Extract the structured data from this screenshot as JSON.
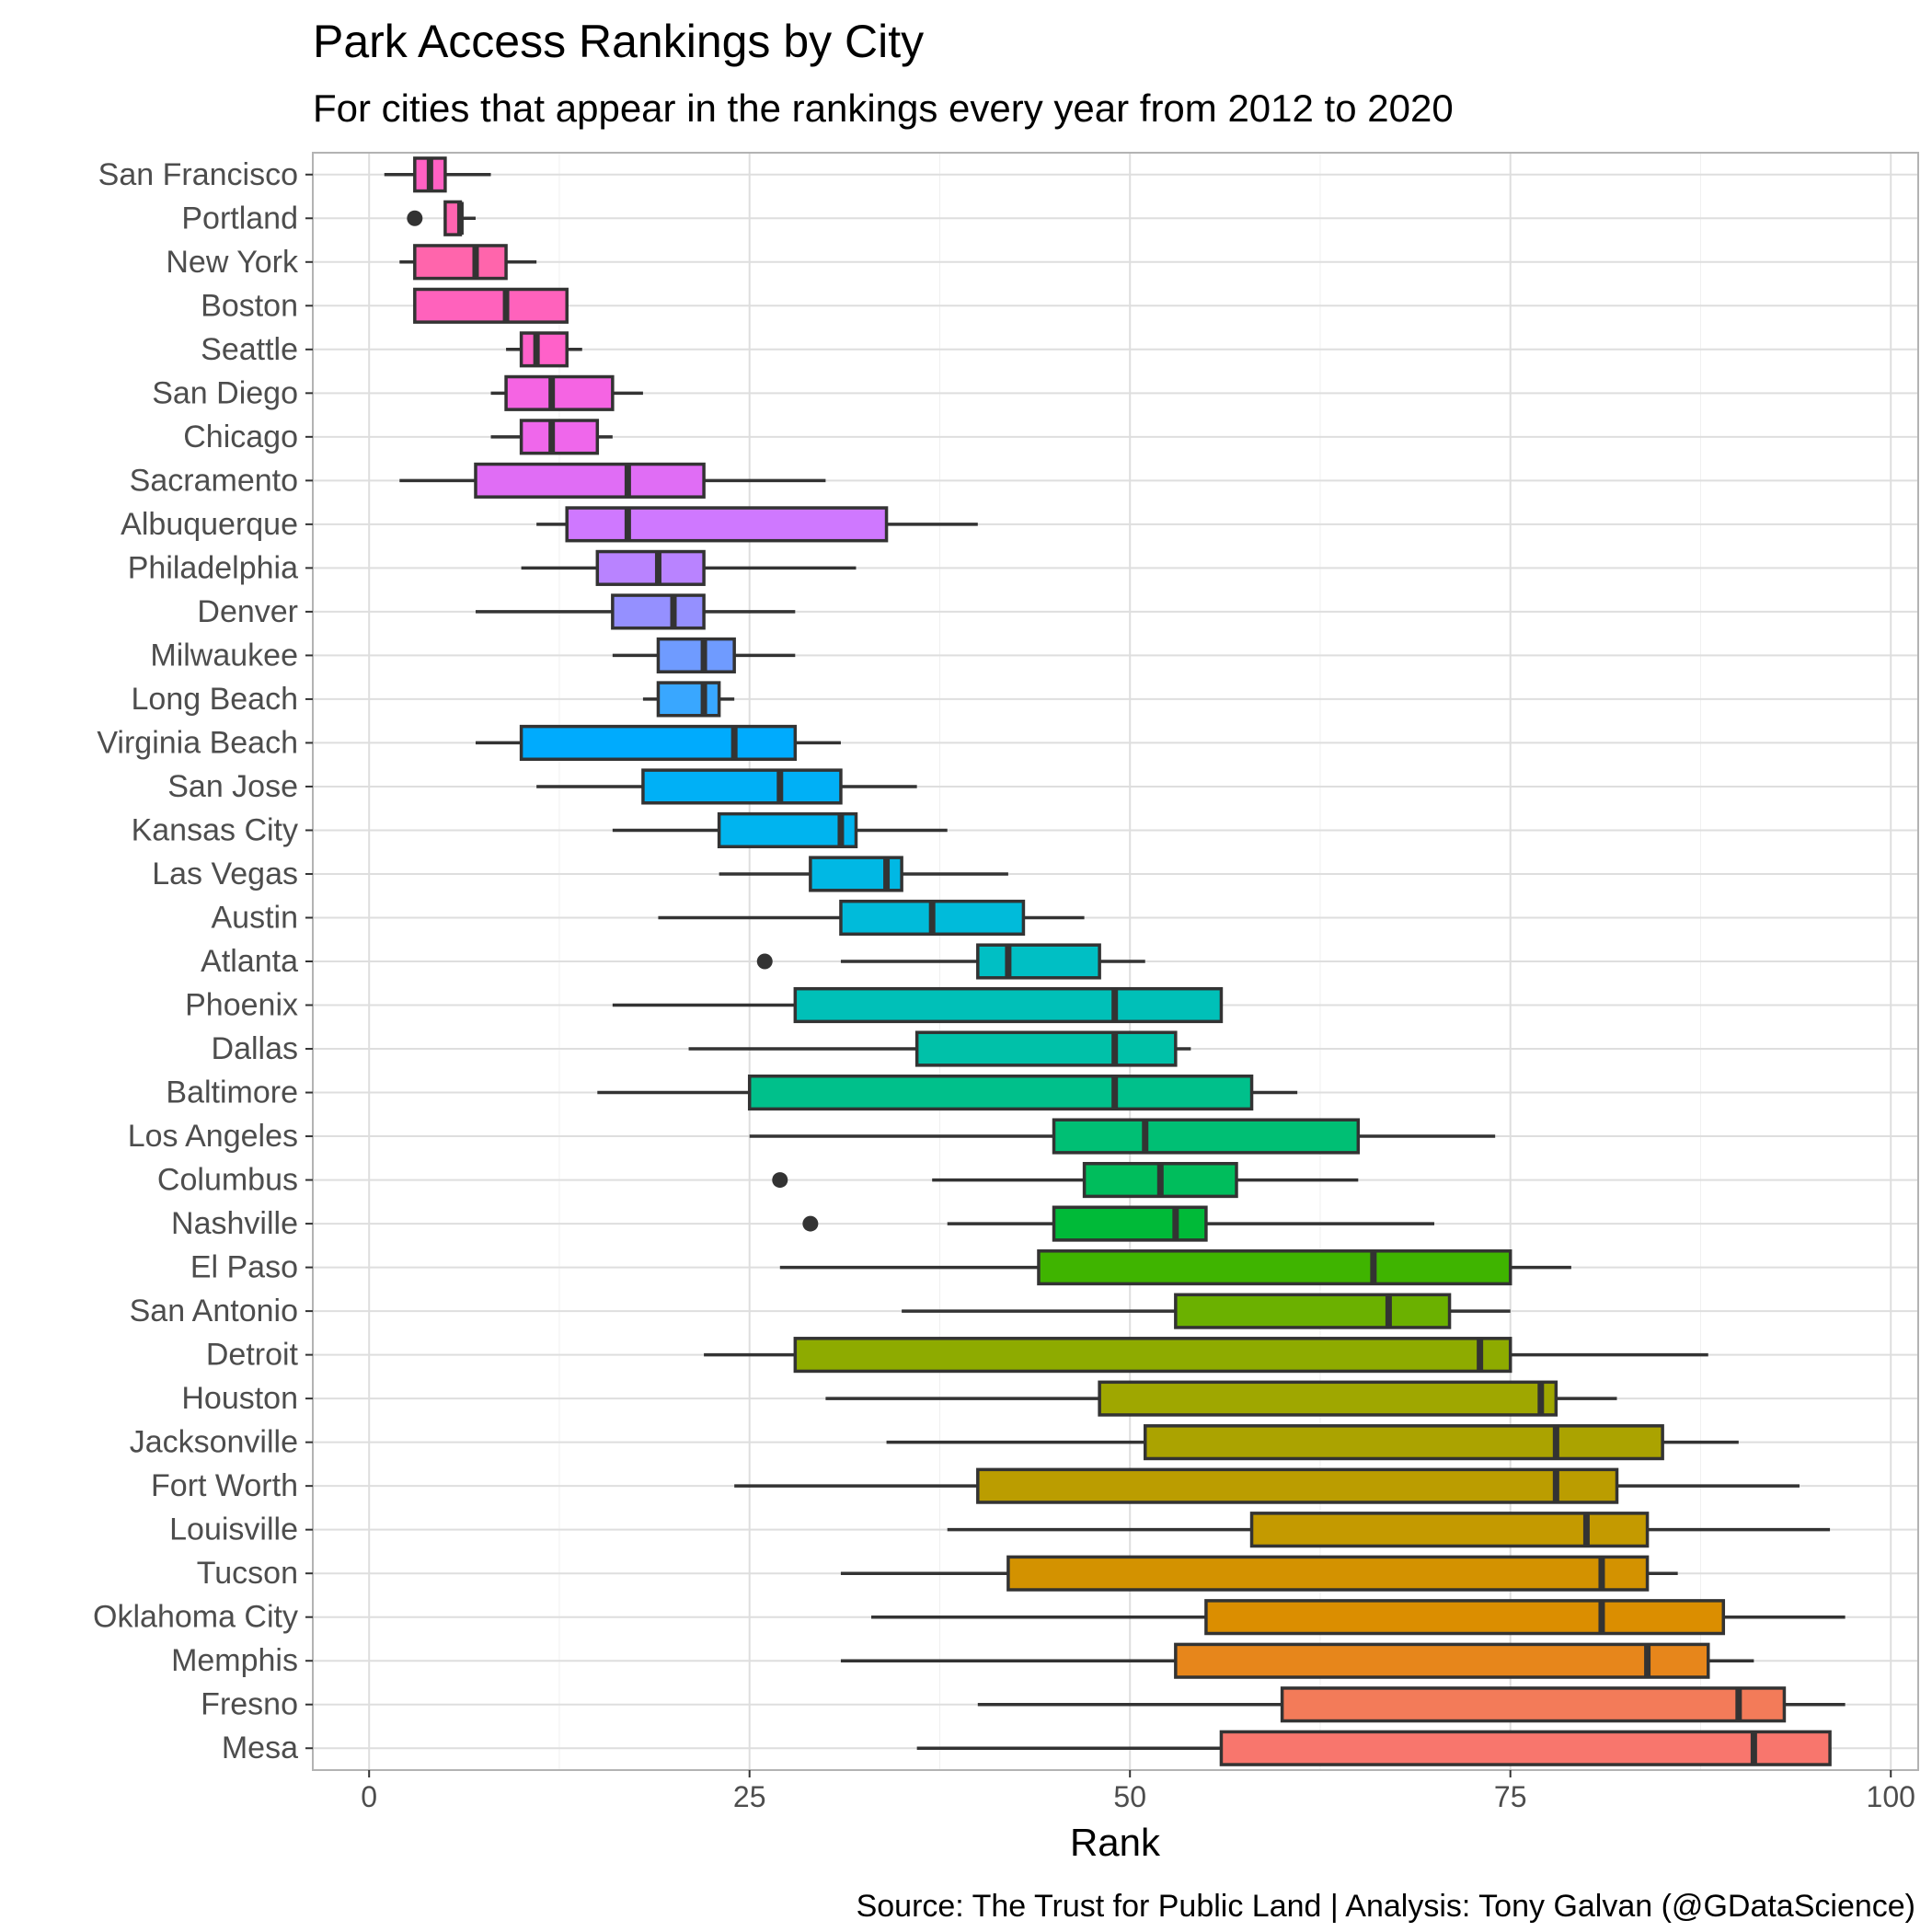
{
  "chart_data": {
    "type": "boxplot",
    "orientation": "horizontal",
    "title": "Park Access Rankings by City",
    "subtitle": "For cities that appear in the rankings every year from 2012 to 2020",
    "xlabel": "Rank",
    "ylabel": "",
    "caption": "Source: The Trust for Public Land  | Analysis: Tony Galvan (@GDataScience)",
    "xlim": [
      -3.7,
      101.8
    ],
    "xticks": [
      0,
      25,
      50,
      75,
      100
    ],
    "grid": true,
    "legend": "none",
    "categories": [
      "San Francisco",
      "Portland",
      "New York",
      "Boston",
      "Seattle",
      "San Diego",
      "Chicago",
      "Sacramento",
      "Albuquerque",
      "Philadelphia",
      "Denver",
      "Milwaukee",
      "Long Beach",
      "Virginia Beach",
      "San Jose",
      "Kansas City",
      "Las Vegas",
      "Austin",
      "Atlanta",
      "Phoenix",
      "Dallas",
      "Baltimore",
      "Los Angeles",
      "Columbus",
      "Nashville",
      "El Paso",
      "San Antonio",
      "Detroit",
      "Houston",
      "Jacksonville",
      "Fort Worth",
      "Louisville",
      "Tucson",
      "Oklahoma City",
      "Memphis",
      "Fresno",
      "Mesa"
    ],
    "boxes": [
      {
        "city": "San Francisco",
        "min": 1,
        "q1": 3,
        "median": 4,
        "q3": 5,
        "max": 8,
        "outliers": [],
        "color": "#FF61C3"
      },
      {
        "city": "Portland",
        "min": 5,
        "q1": 5,
        "median": 6,
        "q3": 6,
        "max": 7,
        "outliers": [
          3
        ],
        "color": "#FF64B0"
      },
      {
        "city": "New York",
        "min": 2,
        "q1": 3,
        "median": 7,
        "q3": 9,
        "max": 11,
        "outliers": [],
        "color": "#FF65AC"
      },
      {
        "city": "Boston",
        "min": 3,
        "q1": 3,
        "median": 9,
        "q3": 13,
        "max": 13,
        "outliers": [],
        "color": "#FF62BC"
      },
      {
        "city": "Seattle",
        "min": 9,
        "q1": 10,
        "median": 11,
        "q3": 13,
        "max": 14,
        "outliers": [],
        "color": "#FF61C9"
      },
      {
        "city": "San Diego",
        "min": 8,
        "q1": 9,
        "median": 12,
        "q3": 16,
        "max": 18,
        "outliers": [],
        "color": "#F564E3"
      },
      {
        "city": "Chicago",
        "min": 8,
        "q1": 10,
        "median": 12,
        "q3": 15,
        "max": 16,
        "outliers": [],
        "color": "#EF67EB"
      },
      {
        "city": "Sacramento",
        "min": 2,
        "q1": 7,
        "median": 17,
        "q3": 22,
        "max": 30,
        "outliers": [],
        "color": "#E06DF5"
      },
      {
        "city": "Albuquerque",
        "min": 11,
        "q1": 13,
        "median": 17,
        "q3": 34,
        "max": 40,
        "outliers": [],
        "color": "#CF78FF"
      },
      {
        "city": "Philadelphia",
        "min": 10,
        "q1": 15,
        "median": 19,
        "q3": 22,
        "max": 32,
        "outliers": [],
        "color": "#B983FF"
      },
      {
        "city": "Denver",
        "min": 7,
        "q1": 16,
        "median": 20,
        "q3": 22,
        "max": 28,
        "outliers": [],
        "color": "#9590FF"
      },
      {
        "city": "Milwaukee",
        "min": 16,
        "q1": 19,
        "median": 22,
        "q3": 24,
        "max": 28,
        "outliers": [],
        "color": "#6F9BFF"
      },
      {
        "city": "Long Beach",
        "min": 18,
        "q1": 19,
        "median": 22,
        "q3": 23,
        "max": 24,
        "outliers": [],
        "color": "#39A7FF"
      },
      {
        "city": "Virginia Beach",
        "min": 7,
        "q1": 10,
        "median": 24,
        "q3": 28,
        "max": 31,
        "outliers": [],
        "color": "#00ABFD"
      },
      {
        "city": "San Jose",
        "min": 11,
        "q1": 18,
        "median": 27,
        "q3": 31,
        "max": 36,
        "outliers": [],
        "color": "#00B0F6"
      },
      {
        "city": "Kansas City",
        "min": 16,
        "q1": 23,
        "median": 31,
        "q3": 32,
        "max": 38,
        "outliers": [],
        "color": "#00B4EF"
      },
      {
        "city": "Las Vegas",
        "min": 23,
        "q1": 29,
        "median": 34,
        "q3": 35,
        "max": 42,
        "outliers": [],
        "color": "#00B8E4"
      },
      {
        "city": "Austin",
        "min": 19,
        "q1": 31,
        "median": 37,
        "q3": 43,
        "max": 47,
        "outliers": [],
        "color": "#00BBDA"
      },
      {
        "city": "Atlanta",
        "min": 31,
        "q1": 40,
        "median": 42,
        "q3": 48,
        "max": 51,
        "outliers": [
          26
        ],
        "color": "#00BFC4"
      },
      {
        "city": "Phoenix",
        "min": 16,
        "q1": 28,
        "median": 49,
        "q3": 56,
        "max": 56,
        "outliers": [],
        "color": "#00C0B8"
      },
      {
        "city": "Dallas",
        "min": 21,
        "q1": 36,
        "median": 49,
        "q3": 53,
        "max": 54,
        "outliers": [],
        "color": "#00C1A9"
      },
      {
        "city": "Baltimore",
        "min": 15,
        "q1": 25,
        "median": 49,
        "q3": 58,
        "max": 61,
        "outliers": [],
        "color": "#00C08B"
      },
      {
        "city": "Los Angeles",
        "min": 25,
        "q1": 45,
        "median": 51,
        "q3": 65,
        "max": 74,
        "outliers": [],
        "color": "#00BF74"
      },
      {
        "city": "Columbus",
        "min": 37,
        "q1": 47,
        "median": 52,
        "q3": 57,
        "max": 65,
        "outliers": [
          27
        ],
        "color": "#00BD5C"
      },
      {
        "city": "Nashville",
        "min": 38,
        "q1": 45,
        "median": 53,
        "q3": 55,
        "max": 70,
        "outliers": [
          29
        ],
        "color": "#00BA38"
      },
      {
        "city": "El Paso",
        "min": 27,
        "q1": 44,
        "median": 66,
        "q3": 75,
        "max": 79,
        "outliers": [],
        "color": "#3FB400"
      },
      {
        "city": "San Antonio",
        "min": 35,
        "q1": 53,
        "median": 67,
        "q3": 71,
        "max": 75,
        "outliers": [],
        "color": "#6BB100"
      },
      {
        "city": "Detroit",
        "min": 22,
        "q1": 28,
        "median": 73,
        "q3": 75,
        "max": 88,
        "outliers": [],
        "color": "#8EAB00"
      },
      {
        "city": "Houston",
        "min": 30,
        "q1": 48,
        "median": 77,
        "q3": 78,
        "max": 82,
        "outliers": [],
        "color": "#9FA700"
      },
      {
        "city": "Jacksonville",
        "min": 34,
        "q1": 51,
        "median": 78,
        "q3": 85,
        "max": 90,
        "outliers": [],
        "color": "#ABA300"
      },
      {
        "city": "Fort Worth",
        "min": 24,
        "q1": 40,
        "median": 78,
        "q3": 82,
        "max": 94,
        "outliers": [],
        "color": "#BB9D00"
      },
      {
        "city": "Louisville",
        "min": 38,
        "q1": 58,
        "median": 80,
        "q3": 84,
        "max": 96,
        "outliers": [],
        "color": "#C49A00"
      },
      {
        "city": "Tucson",
        "min": 31,
        "q1": 42,
        "median": 81,
        "q3": 84,
        "max": 86,
        "outliers": [],
        "color": "#D39200"
      },
      {
        "city": "Oklahoma City",
        "min": 33,
        "q1": 55,
        "median": 81,
        "q3": 89,
        "max": 97,
        "outliers": [],
        "color": "#DB8E00"
      },
      {
        "city": "Memphis",
        "min": 31,
        "q1": 53,
        "median": 84,
        "q3": 88,
        "max": 91,
        "outliers": [],
        "color": "#E7861B"
      },
      {
        "city": "Fresno",
        "min": 40,
        "q1": 60,
        "median": 90,
        "q3": 93,
        "max": 97,
        "outliers": [],
        "color": "#F37B59"
      },
      {
        "city": "Mesa",
        "min": 36,
        "q1": 56,
        "median": 91,
        "q3": 96,
        "max": 96,
        "outliers": [],
        "color": "#F8766D"
      }
    ]
  }
}
